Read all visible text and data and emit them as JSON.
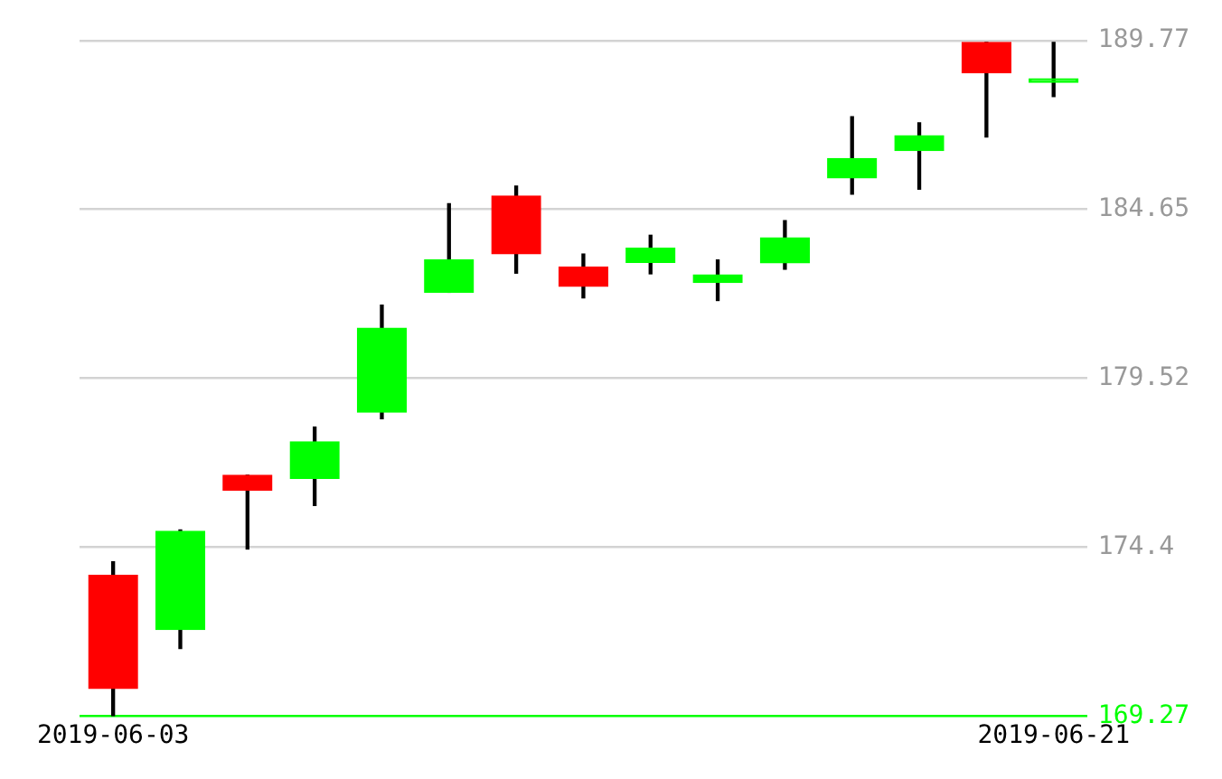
{
  "chart_data": {
    "type": "candlestick",
    "categories": [
      "2019-06-03",
      null,
      null,
      null,
      null,
      null,
      null,
      null,
      null,
      null,
      null,
      null,
      null,
      null,
      "2019-06-21"
    ],
    "ohlc": [
      [
        173.54,
        173.95,
        169.27,
        170.11
      ],
      [
        171.9,
        174.92,
        171.32,
        174.88
      ],
      [
        176.58,
        176.58,
        174.34,
        176.13
      ],
      [
        176.48,
        178.04,
        175.66,
        177.59
      ],
      [
        178.49,
        181.74,
        178.29,
        181.04
      ],
      [
        182.13,
        184.82,
        182.13,
        183.12
      ],
      [
        185.05,
        185.35,
        182.71,
        183.3
      ],
      [
        182.9,
        183.29,
        181.96,
        182.31
      ],
      [
        183.04,
        183.86,
        182.69,
        183.47
      ],
      [
        182.43,
        183.11,
        181.88,
        182.66
      ],
      [
        183.02,
        184.3,
        182.83,
        183.78
      ],
      [
        185.6,
        187.46,
        185.11,
        186.19
      ],
      [
        186.43,
        187.27,
        185.26,
        186.88
      ],
      [
        189.71,
        189.71,
        186.84,
        188.79
      ],
      [
        188.5,
        189.71,
        188.07,
        188.5
      ]
    ],
    "colors": [
      "#ff0000",
      "#00ff00",
      "#ff0000",
      "#00ff00",
      "#00ff00",
      "#00ff00",
      "#ff0000",
      "#ff0000",
      "#00ff00",
      "#00ff00",
      "#00ff00",
      "#00ff00",
      "#00ff00",
      "#ff0000",
      "#00ff00"
    ],
    "ylim": [
      169.27,
      189.77
    ],
    "yticks": [
      169.27,
      174.4,
      179.52,
      184.65,
      189.77
    ],
    "grid": "y",
    "legend": false
  }
}
